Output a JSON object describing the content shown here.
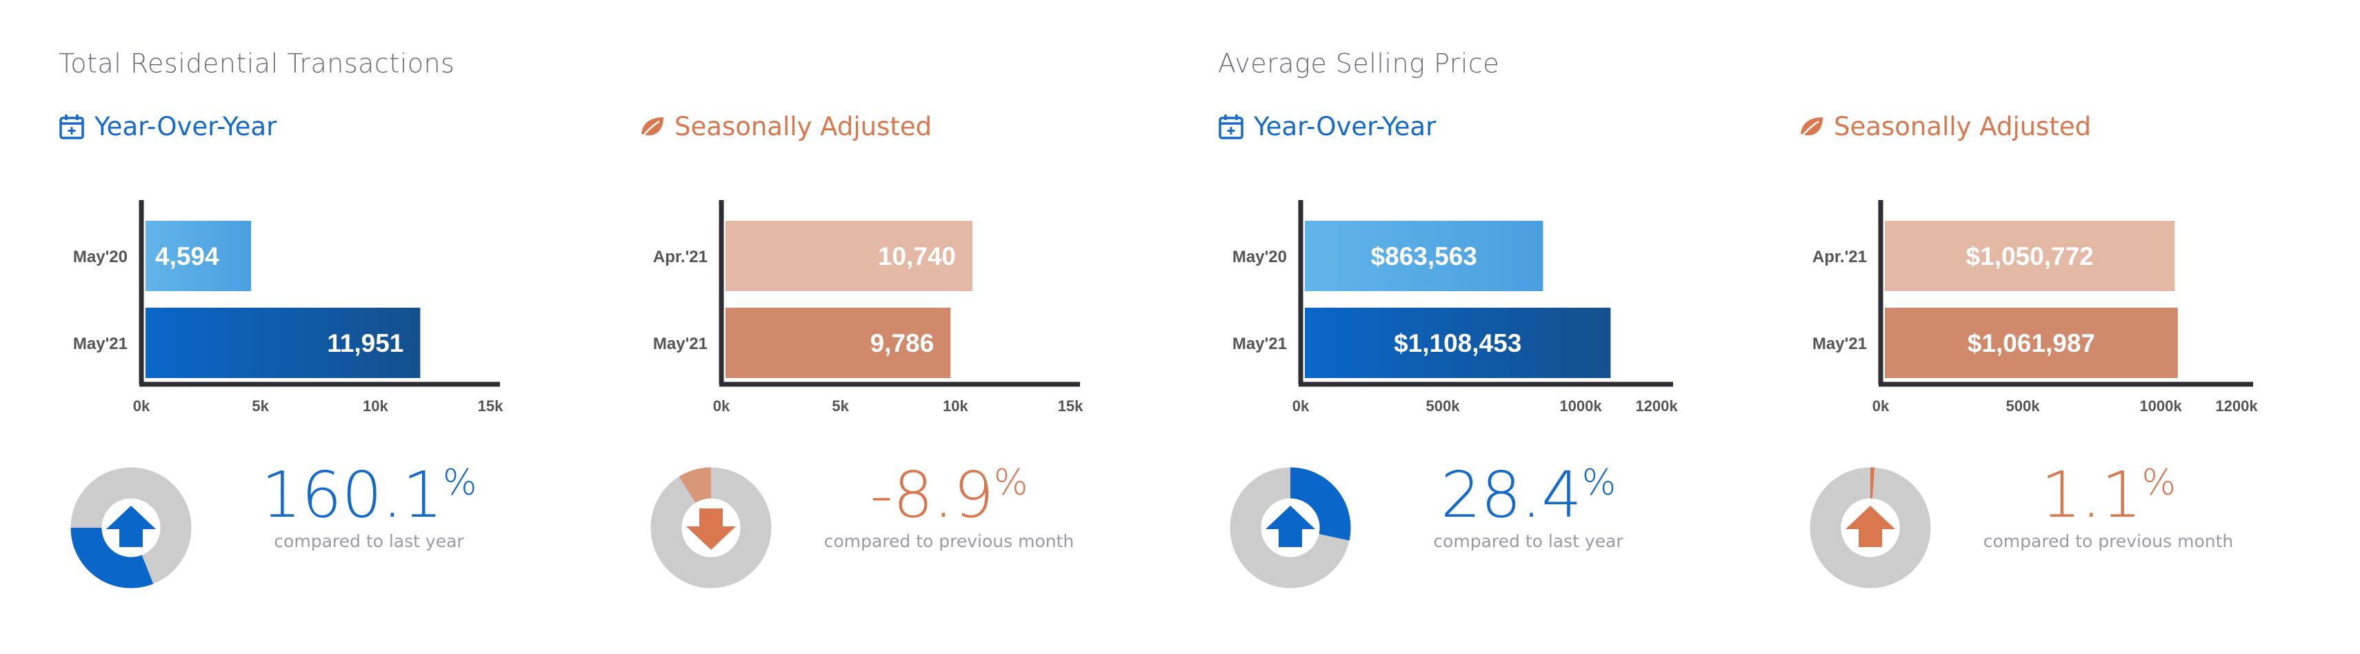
{
  "sections": [
    {
      "title": "Total Residential Transactions"
    },
    {
      "title": "Average Selling Price"
    }
  ],
  "colors": {
    "blue_light": "#5aaee6",
    "blue_dark": "#0b5aa6",
    "orange_light": "#e3b9a5",
    "orange_dark": "#d0896a",
    "orange_text": "#d9774e",
    "blue_text": "#1469c9",
    "donut_grey": "#cccccc",
    "axis": "#2d2d33"
  },
  "panels": [
    {
      "header": "Year-Over-Year",
      "icon": "calendar-icon",
      "theme": "blue",
      "kpi_value": "160.1",
      "kpi_unit": "%",
      "kpi_caption": "compared to last year",
      "kpi_direction": "up",
      "kpi_fraction": 0.31
    },
    {
      "header": "Seasonally Adjusted",
      "icon": "leaf-icon",
      "theme": "orange",
      "kpi_value": "-8.9",
      "kpi_unit": "%",
      "kpi_caption": "compared to previous month",
      "kpi_direction": "down",
      "kpi_fraction": 0.089
    },
    {
      "header": "Year-Over-Year",
      "icon": "calendar-icon",
      "theme": "blue",
      "kpi_value": "28.4",
      "kpi_unit": "%",
      "kpi_caption": "compared to last year",
      "kpi_direction": "up",
      "kpi_fraction": 0.284
    },
    {
      "header": "Seasonally Adjusted",
      "icon": "leaf-icon",
      "theme": "orange",
      "kpi_value": "1.1",
      "kpi_unit": "%",
      "kpi_caption": "compared to previous month",
      "kpi_direction": "up",
      "kpi_fraction": 0.011
    }
  ],
  "chart_data": [
    {
      "type": "bar",
      "orientation": "horizontal",
      "categories": [
        "May'20",
        "May'21"
      ],
      "values": [
        4594,
        11951
      ],
      "value_labels": [
        "4,594",
        "11,951"
      ],
      "xlim": [
        0,
        15000
      ],
      "ticks": [
        0,
        5000,
        10000,
        15000
      ],
      "tick_labels": [
        "0k",
        "5k",
        "10k",
        "15k"
      ],
      "grid": false
    },
    {
      "type": "bar",
      "orientation": "horizontal",
      "categories": [
        "Apr.'21",
        "May'21"
      ],
      "values": [
        10740,
        9786
      ],
      "value_labels": [
        "10,740",
        "9,786"
      ],
      "xlim": [
        0,
        15000
      ],
      "ticks": [
        0,
        5000,
        10000,
        15000
      ],
      "tick_labels": [
        "0k",
        "5k",
        "10k",
        "15k"
      ],
      "grid": false
    },
    {
      "type": "bar",
      "orientation": "horizontal",
      "categories": [
        "May'20",
        "May'21"
      ],
      "values": [
        863563,
        1108453
      ],
      "value_labels": [
        "$863,563",
        "$1,108,453"
      ],
      "xlim": [
        0,
        1300000
      ],
      "ticks": [
        0,
        500000,
        1000000,
        1200000
      ],
      "tick_labels": [
        "0k",
        "500k",
        "1000k",
        "1200k"
      ],
      "grid": false
    },
    {
      "type": "bar",
      "orientation": "horizontal",
      "categories": [
        "Apr.'21",
        "May'21"
      ],
      "values": [
        1050772,
        1061987
      ],
      "value_labels": [
        "$1,050,772",
        "$1,061,987"
      ],
      "xlim": [
        0,
        1300000
      ],
      "ticks": [
        0,
        500000,
        1000000,
        1200000
      ],
      "tick_labels": [
        "0k",
        "500k",
        "1000k",
        "1200k"
      ],
      "grid": false
    }
  ]
}
